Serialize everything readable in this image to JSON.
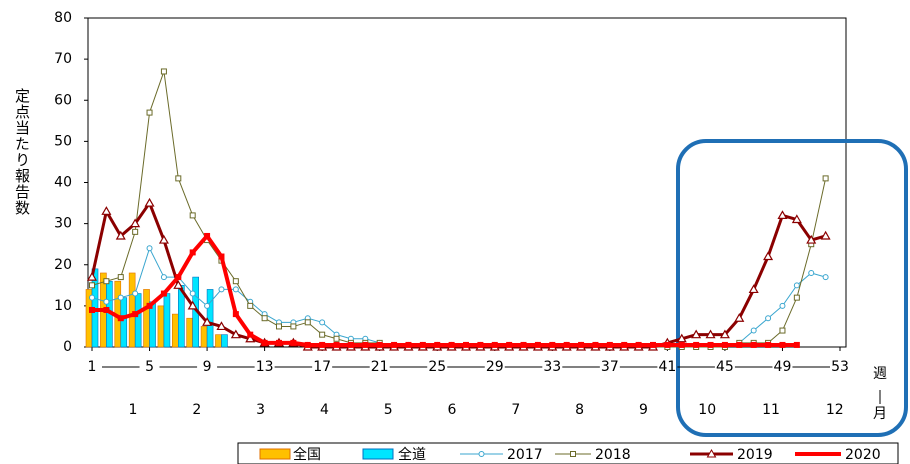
{
  "chart_data": {
    "type": "combo",
    "ylabel": "定点当たり報告数",
    "xlabel": [
      "週",
      "月"
    ],
    "x": [
      1,
      2,
      3,
      4,
      5,
      6,
      7,
      8,
      9,
      10,
      11,
      12,
      13,
      14,
      15,
      16,
      17,
      18,
      19,
      20,
      21,
      22,
      23,
      24,
      25,
      26,
      27,
      28,
      29,
      30,
      31,
      32,
      33,
      34,
      35,
      36,
      37,
      38,
      39,
      40,
      41,
      42,
      43,
      44,
      45,
      46,
      47,
      48,
      49,
      50,
      51,
      52,
      53
    ],
    "xlim": [
      1,
      53
    ],
    "xticks": [
      1,
      5,
      9,
      13,
      17,
      21,
      25,
      29,
      33,
      37,
      41,
      45,
      49,
      53
    ],
    "month_labels": [
      "1",
      "2",
      "3",
      "4",
      "5",
      "6",
      "7",
      "8",
      "9",
      "10",
      "11",
      "12"
    ],
    "ylim": [
      0,
      80
    ],
    "yticks": [
      0,
      10,
      20,
      30,
      40,
      50,
      60,
      70,
      80
    ],
    "grid": false,
    "series": [
      {
        "name": "全国",
        "type": "bar",
        "color": "#ffc000",
        "edge": "#e07000",
        "values": [
          14,
          18,
          16,
          18,
          14,
          10,
          8,
          7,
          5,
          3,
          null,
          null,
          null,
          null,
          null,
          null,
          null,
          null,
          null,
          null,
          null,
          null,
          null,
          null,
          null,
          null,
          null,
          null,
          null,
          null,
          null,
          null,
          null,
          null,
          null,
          null,
          null,
          null,
          null,
          null,
          null,
          null,
          null,
          null,
          null,
          null,
          null,
          null,
          null,
          null,
          null,
          null,
          null
        ]
      },
      {
        "name": "全道",
        "type": "bar",
        "color": "#00e5ff",
        "edge": "#0070c0",
        "values": [
          19,
          16,
          12,
          13,
          11,
          13,
          15,
          17,
          14,
          3,
          null,
          null,
          null,
          null,
          null,
          null,
          null,
          null,
          null,
          null,
          null,
          null,
          null,
          null,
          null,
          null,
          null,
          null,
          null,
          null,
          null,
          null,
          null,
          null,
          null,
          null,
          null,
          null,
          null,
          null,
          null,
          null,
          null,
          null,
          null,
          null,
          null,
          null,
          null,
          null,
          null,
          null,
          null
        ]
      },
      {
        "name": "2017",
        "type": "line",
        "color": "#3aa6cf",
        "marker": "circle",
        "width": 1,
        "values": [
          12,
          11,
          12,
          13,
          24,
          17,
          17,
          13,
          10,
          14,
          14,
          11,
          8,
          6,
          6,
          7,
          6,
          3,
          2,
          2,
          1,
          0,
          0,
          0,
          0,
          0,
          0,
          0,
          0,
          0,
          0,
          0,
          0,
          0,
          0,
          0,
          0,
          0,
          0,
          0,
          0,
          0,
          0,
          0,
          0,
          1,
          4,
          7,
          10,
          15,
          18,
          17,
          null
        ]
      },
      {
        "name": "2018",
        "type": "line",
        "color": "#6b6b2a",
        "marker": "square",
        "width": 1,
        "values": [
          15,
          16,
          17,
          28,
          57,
          67,
          41,
          32,
          26,
          21,
          16,
          10,
          7,
          5,
          5,
          6,
          3,
          2,
          1,
          1,
          1,
          0,
          0,
          0,
          0,
          0,
          0,
          0,
          0,
          0,
          0,
          0,
          0,
          0,
          0,
          0,
          0,
          0,
          0,
          0,
          0,
          0,
          0,
          0,
          0,
          1,
          1,
          1,
          4,
          12,
          25,
          41,
          null
        ]
      },
      {
        "name": "2019",
        "type": "line",
        "color": "#8b0000",
        "marker": "triangle",
        "width": 3,
        "values": [
          17,
          33,
          27,
          30,
          35,
          26,
          15,
          10,
          6,
          5,
          3,
          2,
          1,
          1,
          1,
          0,
          0,
          0,
          0,
          0,
          0,
          0,
          0,
          0,
          0,
          0,
          0,
          0,
          0,
          0,
          0,
          0,
          0,
          0,
          0,
          0,
          0,
          0,
          0,
          0,
          1,
          2,
          3,
          3,
          3,
          7,
          14,
          22,
          32,
          31,
          26,
          27,
          null
        ]
      },
      {
        "name": "2020",
        "type": "line",
        "color": "#ff0000",
        "marker": "smallsquare",
        "width": 4,
        "values": [
          9,
          9,
          7,
          8,
          10,
          13,
          17,
          23,
          27,
          22,
          8,
          3,
          1,
          1,
          1,
          0.5,
          0.5,
          0.5,
          0.5,
          0.5,
          0.5,
          0.5,
          0.5,
          0.5,
          0.5,
          0.5,
          0.5,
          0.5,
          0.5,
          0.5,
          0.5,
          0.5,
          0.5,
          0.5,
          0.5,
          0.5,
          0.5,
          0.5,
          0.5,
          0.5,
          0.5,
          0.5,
          0.5,
          0.5,
          0.5,
          0.5,
          0.5,
          0.5,
          0.5,
          0.5,
          null,
          null,
          null
        ]
      }
    ]
  }
}
